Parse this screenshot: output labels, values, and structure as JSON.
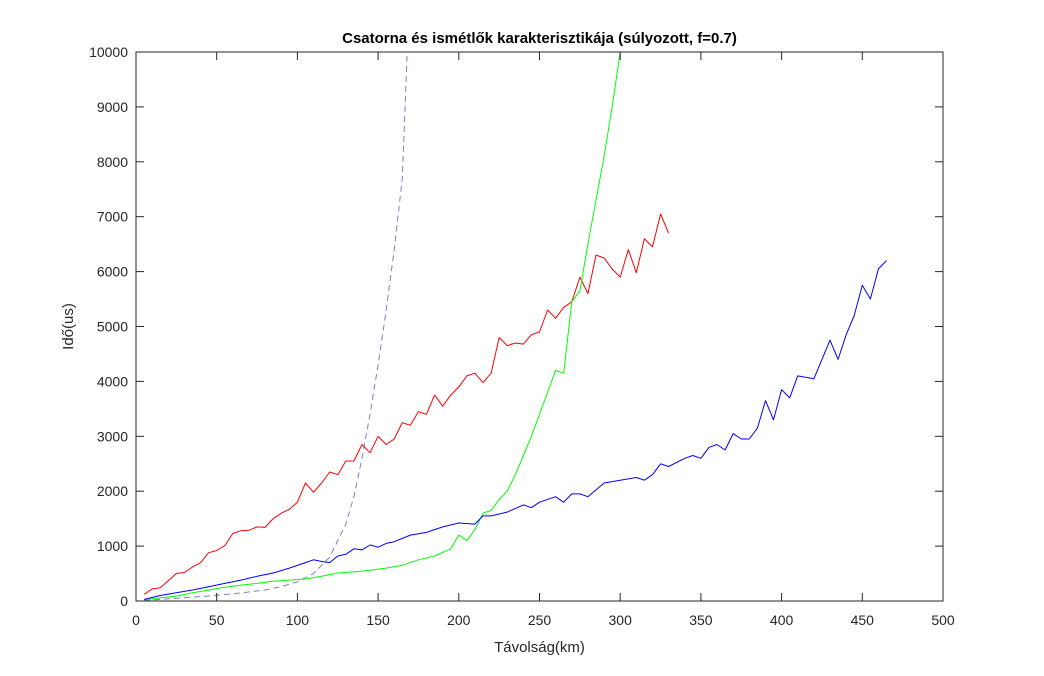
{
  "chart_data": {
    "type": "line",
    "title": "Csatorna és ismétlők karakterisztikája (súlyozott, f=0.7)",
    "xlabel": "Távolság(km)",
    "ylabel": "Idő(us)",
    "xlim": [
      0,
      500
    ],
    "ylim": [
      0,
      10000
    ],
    "xticks": [
      0,
      50,
      100,
      150,
      200,
      250,
      300,
      350,
      400,
      450,
      500
    ],
    "yticks": [
      0,
      1000,
      2000,
      3000,
      4000,
      5000,
      6000,
      7000,
      8000,
      9000,
      10000
    ],
    "grid": false,
    "series": [
      {
        "color": "#8080c0",
        "style": "dashed",
        "x": [
          5,
          20,
          40,
          60,
          80,
          90,
          100,
          110,
          120,
          130,
          135,
          140,
          145,
          150,
          155,
          160,
          165,
          168
        ],
        "y": [
          10,
          40,
          80,
          130,
          200,
          260,
          350,
          500,
          800,
          1400,
          1900,
          2600,
          3400,
          4300,
          5300,
          6400,
          7700,
          10000
        ]
      },
      {
        "color": "#ff0000",
        "style": "solid",
        "x": [
          5,
          10,
          15,
          20,
          25,
          30,
          35,
          40,
          45,
          50,
          55,
          60,
          65,
          70,
          75,
          80,
          85,
          90,
          95,
          100,
          105,
          110,
          115,
          120,
          125,
          130,
          135,
          140,
          145,
          150,
          155,
          160,
          165,
          170,
          175,
          180,
          185,
          190,
          195,
          200,
          205,
          210,
          215,
          220,
          225,
          230,
          235,
          240,
          245,
          250,
          255,
          260,
          265,
          270,
          275,
          280,
          285,
          290,
          295,
          300,
          305,
          310,
          315,
          320,
          325,
          330
        ],
        "y": [
          120,
          220,
          240,
          370,
          500,
          520,
          620,
          700,
          880,
          920,
          1010,
          1230,
          1280,
          1290,
          1350,
          1340,
          1500,
          1600,
          1670,
          1800,
          2150,
          1980,
          2150,
          2350,
          2300,
          2550,
          2550,
          2850,
          2700,
          3000,
          2850,
          2950,
          3250,
          3200,
          3450,
          3400,
          3750,
          3550,
          3750,
          3900,
          4100,
          4150,
          3980,
          4150,
          4800,
          4650,
          4700,
          4680,
          4850,
          4900,
          5300,
          5150,
          5350,
          5450,
          5900,
          5600,
          6300,
          6250,
          6050,
          5900,
          6400,
          5980,
          6600,
          6450,
          7050,
          6700
        ]
      },
      {
        "color": "#00ff00",
        "style": "solid",
        "x": [
          5,
          15,
          25,
          35,
          45,
          55,
          65,
          75,
          85,
          95,
          105,
          115,
          125,
          135,
          145,
          155,
          165,
          175,
          185,
          195,
          200,
          205,
          210,
          215,
          220,
          225,
          230,
          235,
          240,
          245,
          250,
          255,
          260,
          265,
          270,
          275,
          280,
          285,
          290,
          295,
          300
        ],
        "y": [
          20,
          60,
          90,
          150,
          200,
          250,
          290,
          320,
          360,
          380,
          400,
          450,
          510,
          530,
          560,
          600,
          650,
          750,
          820,
          950,
          1200,
          1100,
          1300,
          1600,
          1650,
          1850,
          2000,
          2300,
          2650,
          3000,
          3400,
          3800,
          4200,
          4150,
          5450,
          5650,
          6500,
          7300,
          8100,
          9000,
          10000
        ]
      },
      {
        "color": "#0000ff",
        "style": "solid",
        "x": [
          5,
          15,
          25,
          35,
          45,
          55,
          65,
          75,
          85,
          95,
          105,
          110,
          115,
          120,
          125,
          130,
          135,
          140,
          145,
          150,
          155,
          160,
          170,
          180,
          190,
          200,
          210,
          215,
          220,
          230,
          240,
          245,
          250,
          260,
          265,
          270,
          275,
          280,
          290,
          300,
          310,
          315,
          320,
          325,
          330,
          340,
          345,
          350,
          355,
          360,
          365,
          370,
          375,
          380,
          385,
          390,
          395,
          400,
          405,
          410,
          420,
          430,
          435,
          440,
          445,
          450,
          455,
          460,
          465
        ],
        "y": [
          30,
          100,
          150,
          200,
          260,
          320,
          380,
          450,
          510,
          600,
          700,
          750,
          720,
          700,
          820,
          850,
          950,
          930,
          1020,
          980,
          1050,
          1080,
          1200,
          1250,
          1350,
          1420,
          1400,
          1550,
          1550,
          1620,
          1750,
          1700,
          1800,
          1900,
          1800,
          1950,
          1950,
          1900,
          2150,
          2200,
          2250,
          2200,
          2300,
          2500,
          2450,
          2600,
          2650,
          2600,
          2800,
          2850,
          2750,
          3050,
          2950,
          2950,
          3150,
          3650,
          3300,
          3850,
          3700,
          4100,
          4050,
          4750,
          4400,
          4850,
          5200,
          5750,
          5500,
          6050,
          6200
        ]
      }
    ]
  }
}
